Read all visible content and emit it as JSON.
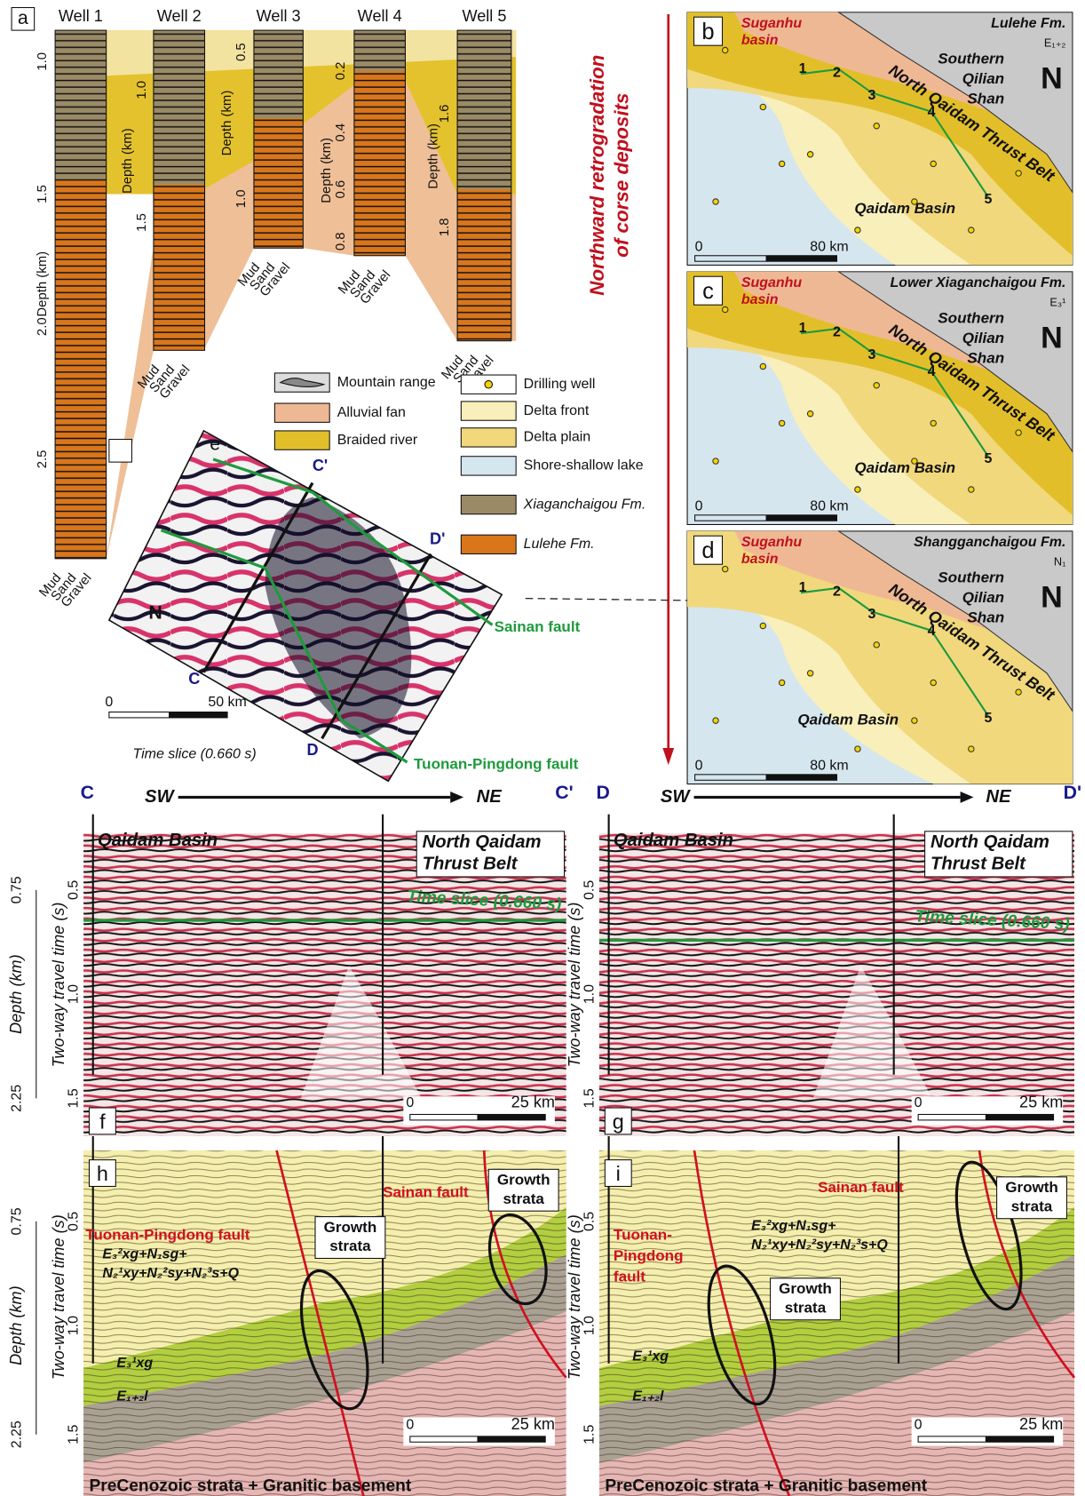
{
  "panel_a": {
    "label": "a",
    "lithology": [
      "Mud",
      "Sand",
      "Gravel"
    ],
    "wells": [
      {
        "name": "Well 1",
        "depth_label": "Depth (km)",
        "ticks": [
          "1.0",
          "1.5",
          "2.0",
          "2.5"
        ]
      },
      {
        "name": "Well 2",
        "depth_label": "Depth (km)",
        "ticks": [
          "1.0",
          "1.5"
        ]
      },
      {
        "name": "Well 3",
        "depth_label": "Depth (km)",
        "ticks": [
          "0.5",
          "1.0"
        ]
      },
      {
        "name": "Well 4",
        "depth_label": "Depth (km)",
        "ticks": [
          "0.2",
          "0.4",
          "0.6",
          "0.8"
        ]
      },
      {
        "name": "Well 5",
        "depth_label": "Depth (km)",
        "ticks": [
          "1.6",
          "1.8"
        ]
      }
    ]
  },
  "legend": {
    "items": [
      "Mountain range",
      "Alluvial fan",
      "Braided river",
      "Drilling well",
      "Delta front",
      "Delta plain",
      "Shore-shallow lake",
      "Xiaganchaigou Fm.",
      "Lulehe Fm."
    ]
  },
  "arrow_text": [
    "Northward retrogradation",
    "of corse deposits"
  ],
  "panel_e": {
    "label": "e",
    "c_end": "C'",
    "d_end": "D'",
    "c_start": "C",
    "d_start": "D",
    "north": "N",
    "sainan": "Sainan fault",
    "tuonan": "Tuonan-Pingdong fault",
    "scale": [
      "0",
      "50 km"
    ],
    "caption": "Time slice (0.660 s)"
  },
  "maps": [
    {
      "label": "b",
      "basin": [
        "Suganhu",
        "basin"
      ],
      "formation": "Lulehe Fm.",
      "unit": "E₁₊₂",
      "range": [
        "Southern",
        "Qilian",
        "Shan"
      ],
      "north": "N",
      "belt": "North Qaidam Thrust Belt",
      "lake": "Qaidam Basin",
      "wells": [
        "1",
        "2",
        "3",
        "4",
        "5"
      ],
      "scale": [
        "0",
        "80 km"
      ]
    },
    {
      "label": "c",
      "basin": [
        "Suganhu",
        "basin"
      ],
      "formation": "Lower Xiaganchaigou Fm.",
      "unit": "E₃¹",
      "range": [
        "Southern",
        "Qilian",
        "Shan"
      ],
      "north": "N",
      "belt": "North Qaidam Thrust Belt",
      "lake": "Qaidam Basin",
      "wells": [
        "1",
        "2",
        "3",
        "4",
        "5"
      ],
      "scale": [
        "0",
        "80 km"
      ]
    },
    {
      "label": "d",
      "basin": [
        "Suganhu",
        "basin"
      ],
      "formation": "Shangganchaigou Fm.",
      "unit": "N₁",
      "range": [
        "Southern",
        "Qilian",
        "Shan"
      ],
      "north": "N",
      "belt": "North Qaidam Thrust Belt",
      "lake": "Qaidam Basin",
      "wells": [
        "1",
        "2",
        "3",
        "4",
        "5"
      ],
      "scale": [
        "0",
        "80 km"
      ]
    }
  ],
  "sections": [
    {
      "label": "f",
      "start": "C",
      "end": "C'",
      "sw": "SW",
      "ne": "NE",
      "basin": "Qaidam Basin",
      "belt": [
        "North Qaidam",
        "Thrust Belt"
      ],
      "slice": "Time slice (0.660 s)",
      "axis": "Two-way travel time (s)",
      "ticks": [
        "0.5",
        "1.0",
        "1.5"
      ],
      "depth_axis": "Depth (km)",
      "depth_ticks": [
        "0.75",
        "2.25"
      ],
      "scale": [
        "0",
        "25 km"
      ]
    },
    {
      "label": "g",
      "start": "D",
      "end": "D'",
      "sw": "SW",
      "ne": "NE",
      "basin": "Qaidam Basin",
      "belt": [
        "North Qaidam",
        "Thrust Belt"
      ],
      "slice": "Time slice (0.660 s)",
      "axis": "Two-way travel time (s)",
      "ticks": [
        "0.5",
        "1.0",
        "1.5"
      ],
      "scale": [
        "0",
        "25 km"
      ]
    }
  ],
  "interpretations": [
    {
      "label": "h",
      "tuonan": [
        "Tuonan-Pingdong fault"
      ],
      "sainan": "Sainan fault",
      "growth_1": [
        "Growth",
        "strata"
      ],
      "growth_2": [
        "Growth",
        "strata"
      ],
      "upper": [
        "E₃²xg+N₁sg+",
        "N₂¹xy+N₂²sy+N₂³s+Q"
      ],
      "middle": "E₃¹xg",
      "lower": "E₁₊₂l",
      "base": "PreCenozoic strata + Granitic basement",
      "axis": "Two-way travel time (s)",
      "ticks": [
        "0.5",
        "1.0",
        "1.5"
      ],
      "depth_axis": "Depth (km)",
      "depth_ticks": [
        "0.75",
        "2.25"
      ],
      "scale": [
        "0",
        "25 km"
      ]
    },
    {
      "label": "i",
      "tuonan": [
        "Tuonan-",
        "Pingdong",
        "fault"
      ],
      "sainan": "Sainan fault",
      "growth_1": [
        "Growth",
        "strata"
      ],
      "growth_2": [
        "Growth",
        "strata"
      ],
      "upper": [
        "E₃²xg+N₁sg+",
        "N₂¹xy+N₂²sy+N₂³s+Q"
      ],
      "middle": "E₃¹xg",
      "lower": "E₁₊₂l",
      "base": "PreCenozoic strata + Granitic basement",
      "axis": "Two-way travel time (s)",
      "ticks": [
        "0.5",
        "1.0",
        "1.5"
      ],
      "scale": [
        "0",
        "25 km"
      ]
    }
  ]
}
